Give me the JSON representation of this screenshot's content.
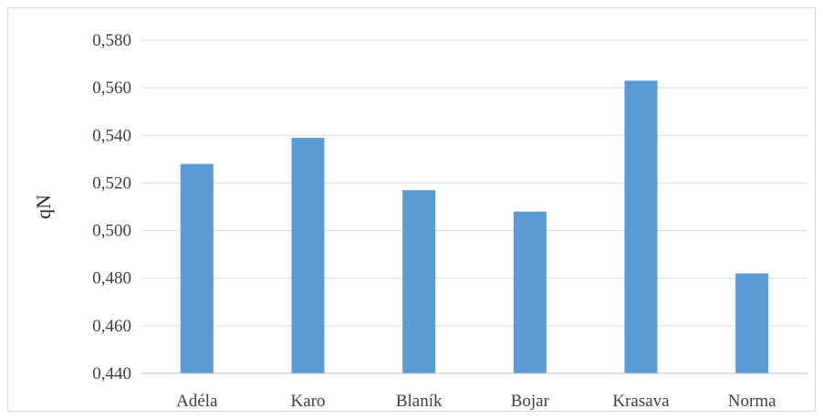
{
  "chart_data": {
    "type": "bar",
    "categories": [
      "Adéla",
      "Karo",
      "Blaník",
      "Bojar",
      "Krasava",
      "Norma"
    ],
    "values": [
      0.528,
      0.539,
      0.517,
      0.508,
      0.563,
      0.482
    ],
    "ylabel": "qN",
    "xlabel": "",
    "title": "",
    "ylim": [
      0.44,
      0.58
    ],
    "yticks": [
      "0,440",
      "0,460",
      "0,480",
      "0,500",
      "0,520",
      "0,540",
      "0,560",
      "0,580"
    ],
    "grid": true,
    "legend": "none",
    "bar_color": "#5B9BD5"
  }
}
